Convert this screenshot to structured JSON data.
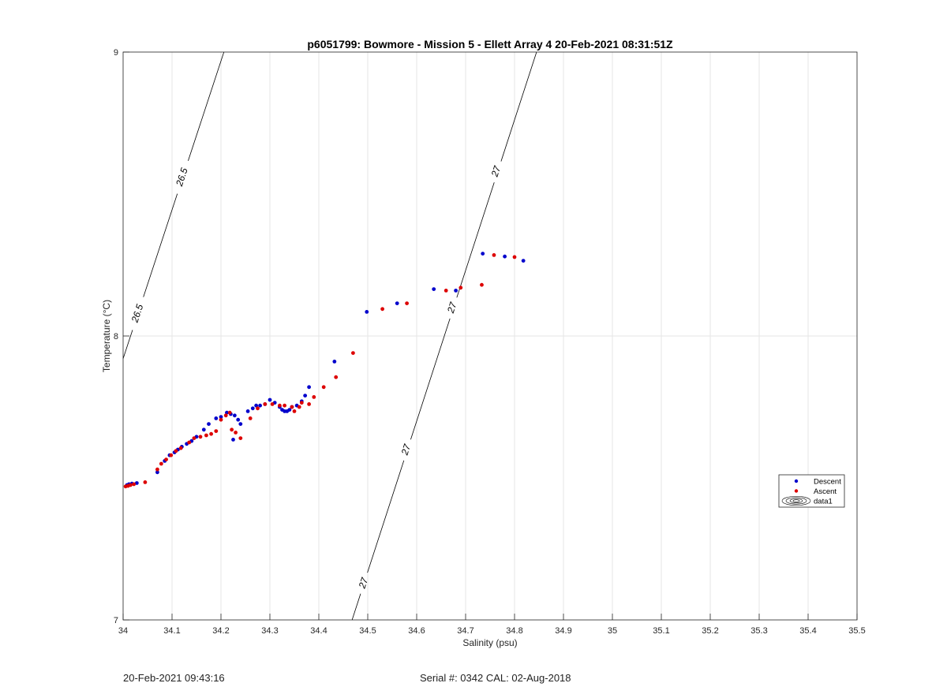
{
  "footer": {
    "timestamp": "20-Feb-2021 09:43:16",
    "serial": "Serial #: 0342  CAL: 02-Aug-2018"
  },
  "colors": {
    "descent": "#0000cc",
    "ascent": "#dd0000",
    "grid": "#e6e6e6",
    "contour": "#000000"
  },
  "chart_data": {
    "type": "scatter",
    "title": "p6051799: Bowmore - Mission 5 - Ellett Array 4 20-Feb-2021 08:31:51Z",
    "xlabel": "Salinity (psu)",
    "ylabel": "Temperature (°C)",
    "xlim": [
      34,
      35.5
    ],
    "ylim": [
      7,
      9
    ],
    "xticks": [
      "34",
      "34.1",
      "34.2",
      "34.3",
      "34.4",
      "34.5",
      "34.6",
      "34.7",
      "34.8",
      "34.9",
      "35",
      "35.1",
      "35.2",
      "35.3",
      "35.4",
      "35.5"
    ],
    "yticks": [
      "7",
      "8",
      "9"
    ],
    "grid": true,
    "legend_position": "right",
    "legend": [
      "Descent",
      "Ascent",
      "data1"
    ],
    "contours": [
      {
        "name": "26.5",
        "points": [
          [
            34.0,
            7.92
          ],
          [
            34.206,
            9.0
          ]
        ],
        "labels": [
          {
            "text": "26.5",
            "x": 34.029,
            "y": 8.08
          },
          {
            "text": "26.5",
            "x": 34.12,
            "y": 8.56
          }
        ]
      },
      {
        "name": "27",
        "points": [
          [
            34.468,
            7.0
          ],
          [
            34.845,
            9.0
          ]
        ],
        "labels": [
          {
            "text": "27",
            "x": 34.491,
            "y": 7.13
          },
          {
            "text": "27",
            "x": 34.578,
            "y": 7.6
          },
          {
            "text": "27",
            "x": 34.672,
            "y": 8.1
          },
          {
            "text": "27",
            "x": 34.762,
            "y": 8.58
          }
        ]
      }
    ],
    "series": [
      {
        "name": "Descent",
        "points": [
          [
            34.008,
            7.475
          ],
          [
            34.012,
            7.478
          ],
          [
            34.018,
            7.48
          ],
          [
            34.028,
            7.482
          ],
          [
            34.07,
            7.52
          ],
          [
            34.085,
            7.56
          ],
          [
            34.095,
            7.58
          ],
          [
            34.105,
            7.59
          ],
          [
            34.112,
            7.6
          ],
          [
            34.12,
            7.61
          ],
          [
            34.13,
            7.62
          ],
          [
            34.14,
            7.63
          ],
          [
            34.15,
            7.645
          ],
          [
            34.165,
            7.67
          ],
          [
            34.175,
            7.69
          ],
          [
            34.19,
            7.71
          ],
          [
            34.2,
            7.715
          ],
          [
            34.212,
            7.73
          ],
          [
            34.22,
            7.725
          ],
          [
            34.228,
            7.72
          ],
          [
            34.235,
            7.705
          ],
          [
            34.24,
            7.69
          ],
          [
            34.225,
            7.635
          ],
          [
            34.255,
            7.735
          ],
          [
            34.265,
            7.745
          ],
          [
            34.272,
            7.755
          ],
          [
            34.28,
            7.755
          ],
          [
            34.29,
            7.76
          ],
          [
            34.3,
            7.775
          ],
          [
            34.31,
            7.765
          ],
          [
            34.32,
            7.75
          ],
          [
            34.325,
            7.74
          ],
          [
            34.33,
            7.735
          ],
          [
            34.335,
            7.735
          ],
          [
            34.34,
            7.74
          ],
          [
            34.345,
            7.75
          ],
          [
            34.355,
            7.755
          ],
          [
            34.365,
            7.77
          ],
          [
            34.372,
            7.79
          ],
          [
            34.38,
            7.82
          ],
          [
            34.432,
            7.91
          ],
          [
            34.498,
            8.085
          ],
          [
            34.56,
            8.115
          ],
          [
            34.635,
            8.165
          ],
          [
            34.68,
            8.16
          ],
          [
            34.735,
            8.29
          ],
          [
            34.78,
            8.28
          ],
          [
            34.818,
            8.265
          ]
        ]
      },
      {
        "name": "Ascent",
        "points": [
          [
            34.005,
            7.47
          ],
          [
            34.01,
            7.472
          ],
          [
            34.015,
            7.475
          ],
          [
            34.022,
            7.478
          ],
          [
            34.045,
            7.485
          ],
          [
            34.07,
            7.53
          ],
          [
            34.078,
            7.55
          ],
          [
            34.088,
            7.565
          ],
          [
            34.098,
            7.58
          ],
          [
            34.108,
            7.595
          ],
          [
            34.118,
            7.605
          ],
          [
            34.135,
            7.625
          ],
          [
            34.145,
            7.64
          ],
          [
            34.158,
            7.645
          ],
          [
            34.17,
            7.65
          ],
          [
            34.18,
            7.655
          ],
          [
            34.19,
            7.665
          ],
          [
            34.2,
            7.705
          ],
          [
            34.21,
            7.72
          ],
          [
            34.218,
            7.73
          ],
          [
            34.222,
            7.67
          ],
          [
            34.23,
            7.66
          ],
          [
            34.24,
            7.64
          ],
          [
            34.26,
            7.71
          ],
          [
            34.275,
            7.745
          ],
          [
            34.29,
            7.76
          ],
          [
            34.305,
            7.76
          ],
          [
            34.32,
            7.755
          ],
          [
            34.33,
            7.755
          ],
          [
            34.345,
            7.75
          ],
          [
            34.35,
            7.735
          ],
          [
            34.36,
            7.75
          ],
          [
            34.365,
            7.765
          ],
          [
            34.38,
            7.76
          ],
          [
            34.39,
            7.785
          ],
          [
            34.41,
            7.82
          ],
          [
            34.435,
            7.855
          ],
          [
            34.47,
            7.94
          ],
          [
            34.53,
            8.095
          ],
          [
            34.58,
            8.115
          ],
          [
            34.66,
            8.16
          ],
          [
            34.69,
            8.17
          ],
          [
            34.733,
            8.18
          ],
          [
            34.758,
            8.285
          ],
          [
            34.8,
            8.278
          ]
        ]
      }
    ]
  }
}
